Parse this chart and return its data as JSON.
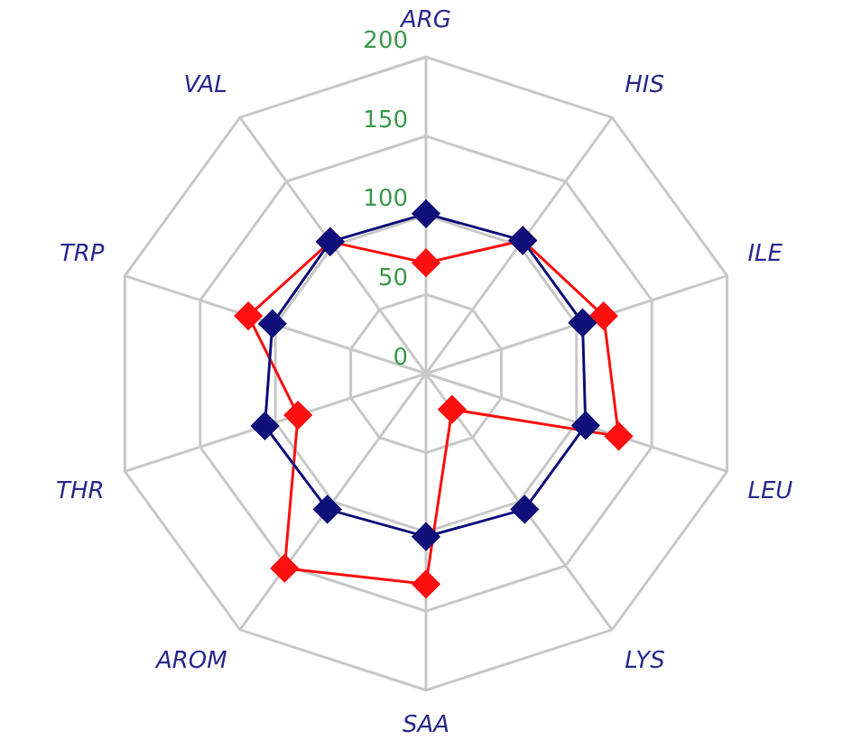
{
  "chart_data": {
    "type": "radar",
    "categories": [
      "ARG",
      "HIS",
      "ILE",
      "LEU",
      "LYS",
      "SAA",
      "AROM",
      "THR",
      "TRP",
      "VAL"
    ],
    "series": [
      {
        "color": "#10107a",
        "values": [
          101,
          104,
          104,
          106,
          106,
          103,
          106,
          107,
          102,
          103
        ]
      },
      {
        "color": "#ff1010",
        "values": [
          70,
          104,
          118,
          128,
          28,
          133,
          152,
          85,
          118,
          103
        ]
      }
    ],
    "ylim": [
      0,
      200
    ],
    "yticks": [
      0,
      50,
      100,
      150,
      200
    ],
    "grid": true,
    "legend": false,
    "marker": "diamond",
    "line_style": "solid"
  }
}
